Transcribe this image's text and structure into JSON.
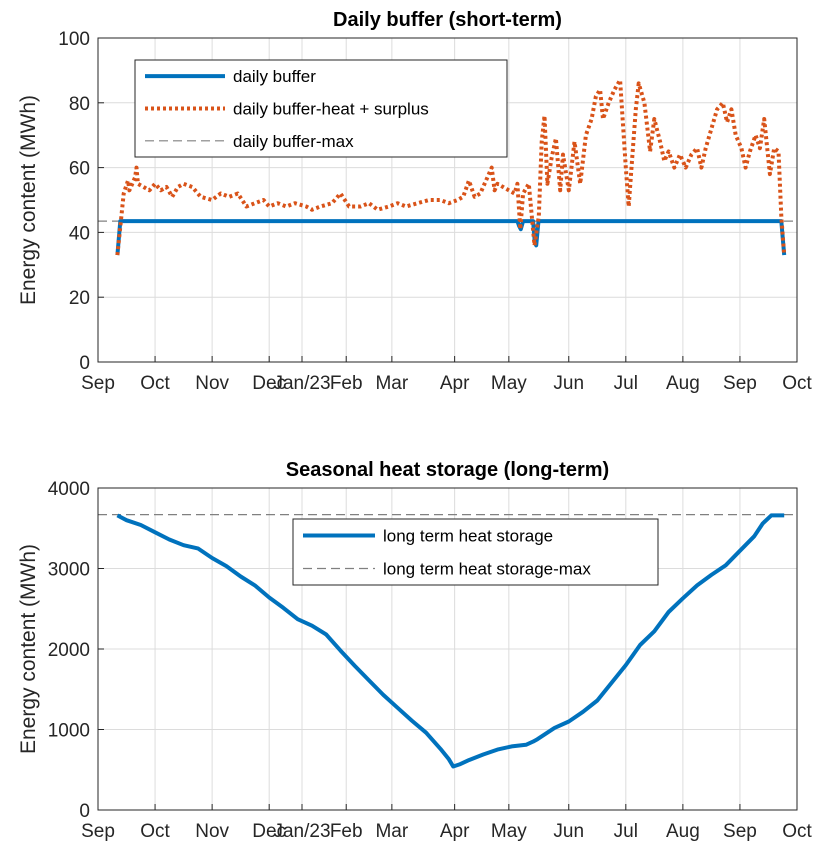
{
  "chart_data": [
    {
      "type": "line",
      "title": "Daily buffer (short-term)",
      "ylabel": "Energy content (MWh)",
      "xlabel": "",
      "ylim": [
        0,
        100
      ],
      "yticks": [
        0,
        20,
        40,
        60,
        80,
        100
      ],
      "x_ticks": [
        "Sep",
        "Oct",
        "Nov",
        "Dec",
        "Jan/23",
        "Feb",
        "Mar",
        "Apr",
        "May",
        "Jun",
        "Jul",
        "Aug",
        "Sep",
        "Oct"
      ],
      "grid": true,
      "legend_position": "top-left",
      "series": [
        {
          "name": "daily buffer",
          "color": "#0072BD",
          "style": "solid",
          "points": [
            [
              0.68,
              33
            ],
            [
              0.78,
              43.5
            ],
            [
              14.7,
              43.5
            ],
            [
              14.76,
              42
            ],
            [
              14.82,
              41
            ],
            [
              14.9,
              43.5
            ],
            [
              15.25,
              43.5
            ],
            [
              15.31,
              37
            ],
            [
              15.36,
              36
            ],
            [
              15.44,
              43.5
            ],
            [
              23.95,
              43.5
            ],
            [
              24.05,
              33
            ]
          ]
        },
        {
          "name": "daily buffer-heat + surplus",
          "color": "#D95319",
          "style": "dotted",
          "points": [
            [
              0.68,
              33
            ],
            [
              0.9,
              52
            ],
            [
              1.05,
              56
            ],
            [
              1.1,
              53
            ],
            [
              1.3,
              57
            ],
            [
              1.35,
              60
            ],
            [
              1.4,
              55
            ],
            [
              1.6,
              54
            ],
            [
              1.8,
              53
            ],
            [
              2,
              55
            ],
            [
              2.2,
              53
            ],
            [
              2.4,
              54
            ],
            [
              2.6,
              51
            ],
            [
              2.8,
              54
            ],
            [
              3,
              55
            ],
            [
              3.3,
              54
            ],
            [
              3.6,
              51
            ],
            [
              4,
              50
            ],
            [
              4.3,
              52
            ],
            [
              4.6,
              51
            ],
            [
              4.9,
              52
            ],
            [
              5.2,
              48
            ],
            [
              5.5,
              49
            ],
            [
              5.8,
              50
            ],
            [
              6,
              48
            ],
            [
              6.3,
              49
            ],
            [
              6.6,
              48
            ],
            [
              6.9,
              49
            ],
            [
              7.3,
              48
            ],
            [
              7.5,
              47
            ],
            [
              7.8,
              48
            ],
            [
              8.2,
              49
            ],
            [
              8.5,
              52
            ],
            [
              8.8,
              48
            ],
            [
              9.2,
              48
            ],
            [
              9.5,
              49
            ],
            [
              9.8,
              47
            ],
            [
              10.2,
              48
            ],
            [
              10.5,
              49
            ],
            [
              10.8,
              48
            ],
            [
              11.2,
              49
            ],
            [
              11.6,
              50
            ],
            [
              12,
              50
            ],
            [
              12.3,
              49
            ],
            [
              12.6,
              50
            ],
            [
              12.8,
              51
            ],
            [
              13,
              56
            ],
            [
              13.2,
              51
            ],
            [
              13.4,
              52
            ],
            [
              13.6,
              56
            ],
            [
              13.8,
              60
            ],
            [
              13.9,
              53
            ],
            [
              14,
              55
            ],
            [
              14.2,
              54
            ],
            [
              14.4,
              53
            ],
            [
              14.6,
              52
            ],
            [
              14.7,
              55
            ],
            [
              14.8,
              41
            ],
            [
              14.9,
              52
            ],
            [
              15.1,
              55
            ],
            [
              15.3,
              36
            ],
            [
              15.45,
              45
            ],
            [
              15.55,
              68
            ],
            [
              15.65,
              76
            ],
            [
              15.75,
              55
            ],
            [
              15.9,
              63
            ],
            [
              16.05,
              69
            ],
            [
              16.2,
              53
            ],
            [
              16.3,
              64
            ],
            [
              16.5,
              53
            ],
            [
              16.7,
              68
            ],
            [
              16.9,
              55
            ],
            [
              17.1,
              70
            ],
            [
              17.3,
              75
            ],
            [
              17.45,
              82
            ],
            [
              17.6,
              84
            ],
            [
              17.7,
              75
            ],
            [
              17.9,
              80
            ],
            [
              18.1,
              84
            ],
            [
              18.3,
              87
            ],
            [
              18.5,
              60
            ],
            [
              18.6,
              48
            ],
            [
              18.7,
              60
            ],
            [
              18.85,
              78
            ],
            [
              18.95,
              86
            ],
            [
              19.15,
              80
            ],
            [
              19.35,
              65
            ],
            [
              19.5,
              75
            ],
            [
              19.7,
              68
            ],
            [
              19.85,
              62
            ],
            [
              20,
              65
            ],
            [
              20.2,
              60
            ],
            [
              20.4,
              64
            ],
            [
              20.6,
              60
            ],
            [
              20.8,
              64
            ],
            [
              21,
              66
            ],
            [
              21.15,
              60
            ],
            [
              21.3,
              66
            ],
            [
              21.5,
              72
            ],
            [
              21.7,
              78
            ],
            [
              21.9,
              80
            ],
            [
              22.05,
              74
            ],
            [
              22.2,
              78
            ],
            [
              22.35,
              70
            ],
            [
              22.55,
              66
            ],
            [
              22.7,
              60
            ],
            [
              22.85,
              65
            ],
            [
              23.05,
              70
            ],
            [
              23.2,
              66
            ],
            [
              23.35,
              75
            ],
            [
              23.55,
              58
            ],
            [
              23.7,
              66
            ],
            [
              23.85,
              65
            ],
            [
              23.95,
              45
            ],
            [
              24.05,
              33
            ]
          ]
        },
        {
          "name": "daily buffer-max",
          "color": "#808080",
          "style": "dashed",
          "points": [
            [
              0,
              43.5
            ],
            [
              24.5,
              43.5
            ]
          ]
        }
      ]
    },
    {
      "type": "line",
      "title": "Seasonal heat storage (long-term)",
      "ylabel": "Energy content (MWh)",
      "xlabel": "",
      "ylim": [
        0,
        4000
      ],
      "yticks": [
        0,
        1000,
        2000,
        3000,
        4000
      ],
      "x_ticks": [
        "Sep",
        "Oct",
        "Nov",
        "Dec",
        "Jan/23",
        "Feb",
        "Mar",
        "Apr",
        "May",
        "Jun",
        "Jul",
        "Aug",
        "Sep",
        "Oct"
      ],
      "grid": true,
      "legend_position": "top-center",
      "series": [
        {
          "name": "long term heat storage",
          "color": "#0072BD",
          "style": "solid",
          "points": [
            [
              0.68,
              3660
            ],
            [
              1.0,
              3600
            ],
            [
              1.5,
              3540
            ],
            [
              2.0,
              3450
            ],
            [
              2.5,
              3360
            ],
            [
              3.0,
              3290
            ],
            [
              3.5,
              3250
            ],
            [
              4.0,
              3130
            ],
            [
              4.5,
              3030
            ],
            [
              5.0,
              2900
            ],
            [
              5.5,
              2790
            ],
            [
              6.0,
              2640
            ],
            [
              6.5,
              2510
            ],
            [
              7.0,
              2370
            ],
            [
              7.5,
              2290
            ],
            [
              8.0,
              2180
            ],
            [
              8.5,
              1980
            ],
            [
              9.0,
              1790
            ],
            [
              9.5,
              1610
            ],
            [
              10.0,
              1430
            ],
            [
              10.5,
              1270
            ],
            [
              11.0,
              1110
            ],
            [
              11.5,
              960
            ],
            [
              12.0,
              760
            ],
            [
              12.3,
              630
            ],
            [
              12.45,
              540
            ],
            [
              12.7,
              570
            ],
            [
              13.0,
              620
            ],
            [
              13.5,
              690
            ],
            [
              14.0,
              750
            ],
            [
              14.5,
              790
            ],
            [
              15.0,
              810
            ],
            [
              15.25,
              850
            ],
            [
              15.4,
              880
            ],
            [
              16.0,
              1020
            ],
            [
              16.5,
              1100
            ],
            [
              17.0,
              1220
            ],
            [
              17.5,
              1360
            ],
            [
              18.0,
              1580
            ],
            [
              18.5,
              1800
            ],
            [
              19.0,
              2050
            ],
            [
              19.5,
              2220
            ],
            [
              20.0,
              2460
            ],
            [
              20.5,
              2630
            ],
            [
              21.0,
              2790
            ],
            [
              21.5,
              2920
            ],
            [
              22.0,
              3040
            ],
            [
              22.5,
              3220
            ],
            [
              23.0,
              3400
            ],
            [
              23.3,
              3560
            ],
            [
              23.6,
              3660
            ],
            [
              24.05,
              3660
            ]
          ]
        },
        {
          "name": "long term heat storage-max",
          "color": "#808080",
          "style": "dashed",
          "points": [
            [
              0,
              3670
            ],
            [
              24.5,
              3670
            ]
          ]
        }
      ]
    }
  ]
}
